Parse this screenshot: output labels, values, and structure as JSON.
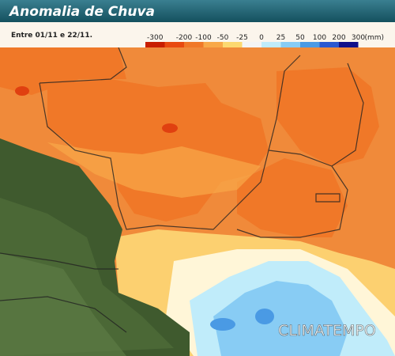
{
  "header": {
    "title": "Anomalia de Chuva"
  },
  "subtitle": "Entre 01/11 e 22/11.",
  "legend": {
    "labels": [
      "-300",
      "-200",
      "-100",
      "-50",
      "-25",
      "0",
      "25",
      "50",
      "100",
      "200",
      "300"
    ],
    "colors": [
      "#c81e00",
      "#e84a10",
      "#f07828",
      "#f8a848",
      "#fcd870",
      "#f4f4f4",
      "#c0ecfa",
      "#88ccf4",
      "#4a9ae4",
      "#2a58d0",
      "#10108a"
    ],
    "unit": "(mm)"
  },
  "watermark": "CLIMATEMPO"
}
